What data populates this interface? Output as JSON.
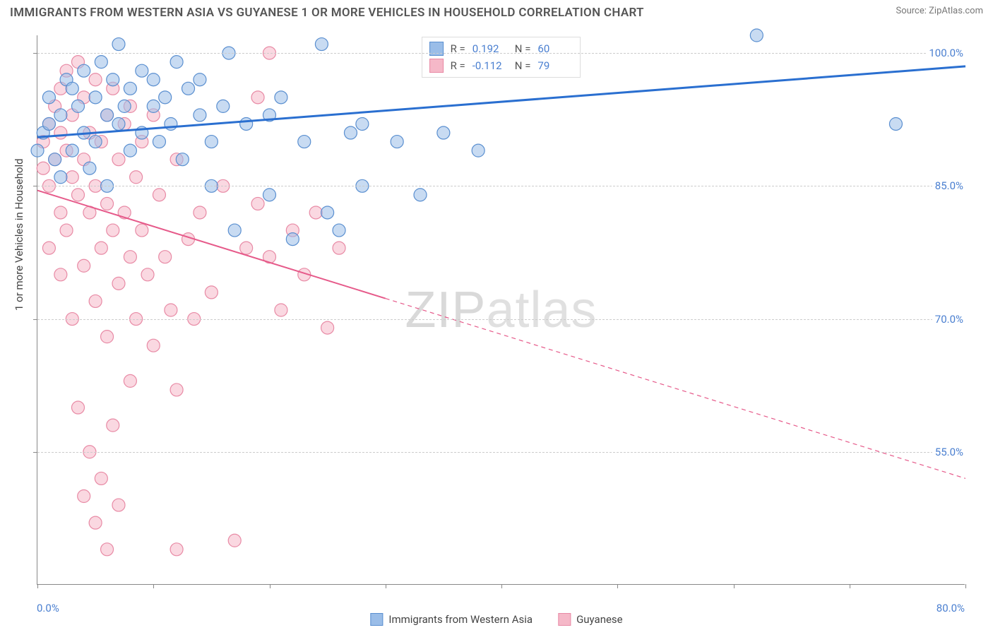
{
  "title": "IMMIGRANTS FROM WESTERN ASIA VS GUYANESE 1 OR MORE VEHICLES IN HOUSEHOLD CORRELATION CHART",
  "source": "Source: ZipAtlas.com",
  "watermark_part1": "ZIP",
  "watermark_part2": "atlas",
  "chart": {
    "type": "scatter",
    "background_color": "#ffffff",
    "grid_color": "#cccccc",
    "axis_color": "#888888",
    "xlim": [
      0,
      80
    ],
    "ylim": [
      40,
      102
    ],
    "xtick_positions": [
      0,
      10,
      20,
      30,
      40,
      50,
      60,
      70,
      80
    ],
    "xlabel_min": "0.0%",
    "xlabel_max": "80.0%",
    "ytick_values": [
      55.0,
      70.0,
      85.0,
      100.0
    ],
    "ytick_labels": [
      "55.0%",
      "70.0%",
      "85.0%",
      "100.0%"
    ],
    "ylabel": "1 or more Vehicles in Household",
    "label_fontsize": 15,
    "tick_color": "#4a7fd0",
    "point_radius": 9,
    "point_opacity": 0.55,
    "series": [
      {
        "name": "Immigrants from Western Asia",
        "short": "blue",
        "fill": "#9abde8",
        "stroke": "#5a8fd0",
        "R": "0.192",
        "N": "60",
        "trend": {
          "x1": 0,
          "y1": 90.5,
          "x2": 80,
          "y2": 98.5,
          "color": "#2a6fd0",
          "width": 3,
          "solid_until_x": 80
        },
        "points": [
          [
            0,
            89
          ],
          [
            0.5,
            91
          ],
          [
            1,
            92
          ],
          [
            1,
            95
          ],
          [
            1.5,
            88
          ],
          [
            2,
            93
          ],
          [
            2,
            86
          ],
          [
            2.5,
            97
          ],
          [
            3,
            96
          ],
          [
            3,
            89
          ],
          [
            3.5,
            94
          ],
          [
            4,
            91
          ],
          [
            4,
            98
          ],
          [
            4.5,
            87
          ],
          [
            5,
            95
          ],
          [
            5,
            90
          ],
          [
            5.5,
            99
          ],
          [
            6,
            93
          ],
          [
            6,
            85
          ],
          [
            6.5,
            97
          ],
          [
            7,
            92
          ],
          [
            7,
            101
          ],
          [
            7.5,
            94
          ],
          [
            8,
            89
          ],
          [
            8,
            96
          ],
          [
            9,
            98
          ],
          [
            9,
            91
          ],
          [
            10,
            94
          ],
          [
            10,
            97
          ],
          [
            10.5,
            90
          ],
          [
            11,
            95
          ],
          [
            11.5,
            92
          ],
          [
            12,
            99
          ],
          [
            12.5,
            88
          ],
          [
            13,
            96
          ],
          [
            14,
            93
          ],
          [
            14,
            97
          ],
          [
            15,
            90
          ],
          [
            15,
            85
          ],
          [
            16,
            94
          ],
          [
            16.5,
            100
          ],
          [
            17,
            80
          ],
          [
            18,
            92
          ],
          [
            20,
            93
          ],
          [
            20,
            84
          ],
          [
            21,
            95
          ],
          [
            22,
            79
          ],
          [
            23,
            90
          ],
          [
            24.5,
            101
          ],
          [
            25,
            82
          ],
          [
            26,
            80
          ],
          [
            27,
            91
          ],
          [
            28,
            85
          ],
          [
            28,
            92
          ],
          [
            31,
            90
          ],
          [
            33,
            84
          ],
          [
            35,
            91
          ],
          [
            38,
            89
          ],
          [
            62,
            102
          ],
          [
            74,
            92
          ]
        ]
      },
      {
        "name": "Guyanese",
        "short": "pink",
        "fill": "#f5b8c8",
        "stroke": "#e88aa5",
        "R": "-0.112",
        "N": "79",
        "trend": {
          "x1": 0,
          "y1": 84.5,
          "x2": 80,
          "y2": 52.0,
          "color": "#e65a8a",
          "width": 2,
          "solid_until_x": 30
        },
        "points": [
          [
            0.5,
            90
          ],
          [
            0.5,
            87
          ],
          [
            1,
            92
          ],
          [
            1,
            85
          ],
          [
            1,
            78
          ],
          [
            1.5,
            94
          ],
          [
            1.5,
            88
          ],
          [
            2,
            96
          ],
          [
            2,
            91
          ],
          [
            2,
            82
          ],
          [
            2,
            75
          ],
          [
            2.5,
            98
          ],
          [
            2.5,
            89
          ],
          [
            2.5,
            80
          ],
          [
            3,
            93
          ],
          [
            3,
            86
          ],
          [
            3,
            70
          ],
          [
            3.5,
            99
          ],
          [
            3.5,
            84
          ],
          [
            3.5,
            60
          ],
          [
            4,
            95
          ],
          [
            4,
            88
          ],
          [
            4,
            76
          ],
          [
            4,
            50
          ],
          [
            4.5,
            91
          ],
          [
            4.5,
            82
          ],
          [
            4.5,
            55
          ],
          [
            5,
            97
          ],
          [
            5,
            85
          ],
          [
            5,
            72
          ],
          [
            5,
            47
          ],
          [
            5.5,
            90
          ],
          [
            5.5,
            78
          ],
          [
            5.5,
            52
          ],
          [
            6,
            93
          ],
          [
            6,
            83
          ],
          [
            6,
            68
          ],
          [
            6,
            44
          ],
          [
            6.5,
            96
          ],
          [
            6.5,
            80
          ],
          [
            6.5,
            58
          ],
          [
            7,
            88
          ],
          [
            7,
            74
          ],
          [
            7,
            49
          ],
          [
            7.5,
            92
          ],
          [
            7.5,
            82
          ],
          [
            8,
            94
          ],
          [
            8,
            77
          ],
          [
            8,
            63
          ],
          [
            8.5,
            86
          ],
          [
            8.5,
            70
          ],
          [
            9,
            90
          ],
          [
            9,
            80
          ],
          [
            9.5,
            75
          ],
          [
            10,
            93
          ],
          [
            10,
            67
          ],
          [
            10.5,
            84
          ],
          [
            11,
            77
          ],
          [
            11.5,
            71
          ],
          [
            12,
            88
          ],
          [
            12,
            62
          ],
          [
            13,
            79
          ],
          [
            13.5,
            70
          ],
          [
            14,
            82
          ],
          [
            15,
            73
          ],
          [
            16,
            85
          ],
          [
            17,
            45
          ],
          [
            18,
            78
          ],
          [
            19,
            83
          ],
          [
            20,
            77
          ],
          [
            21,
            71
          ],
          [
            22,
            80
          ],
          [
            23,
            75
          ],
          [
            24,
            82
          ],
          [
            25,
            69
          ],
          [
            26,
            78
          ],
          [
            19,
            95
          ],
          [
            20,
            100
          ],
          [
            12,
            44
          ]
        ]
      }
    ],
    "legend_bottom": [
      {
        "label": "Immigrants from Western Asia",
        "fill": "#9abde8",
        "stroke": "#5a8fd0"
      },
      {
        "label": "Guyanese",
        "fill": "#f5b8c8",
        "stroke": "#e88aa5"
      }
    ]
  }
}
